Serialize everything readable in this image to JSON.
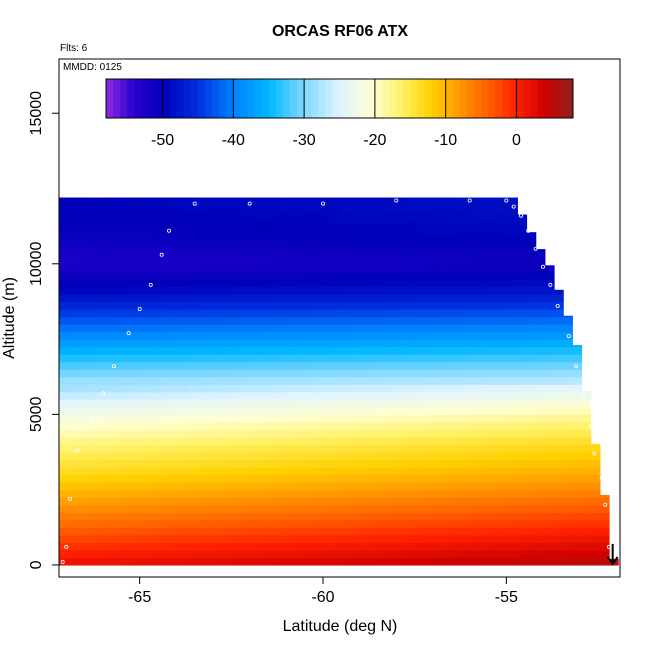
{
  "chart_data": {
    "type": "heatmap",
    "title": "ORCAS RF06 ATX",
    "xlabel": "Latitude (deg N)",
    "ylabel": "Altitude (m)",
    "xlim": [
      -67.2,
      -51.9
    ],
    "ylim": [
      -400,
      16800
    ],
    "x_ticks": [
      -65,
      -60,
      -55
    ],
    "y_ticks": [
      0,
      5000,
      10000,
      15000
    ],
    "annotations": {
      "flights": "Flts: 6",
      "date": "MMDD: 0125"
    },
    "colorbar": {
      "range": [
        -58,
        8
      ],
      "ticks": [
        -50,
        -40,
        -30,
        -20,
        -10,
        0
      ],
      "stops": [
        {
          "v": -58,
          "color": "#8a2be2"
        },
        {
          "v": -54,
          "color": "#2a00d0"
        },
        {
          "v": -50,
          "color": "#0000b8"
        },
        {
          "v": -45,
          "color": "#0030e0"
        },
        {
          "v": -40,
          "color": "#0080ff"
        },
        {
          "v": -35,
          "color": "#00b8ff"
        },
        {
          "v": -30,
          "color": "#80d8ff"
        },
        {
          "v": -25,
          "color": "#e0f4ff"
        },
        {
          "v": -20,
          "color": "#ffffd0"
        },
        {
          "v": -16,
          "color": "#fff060"
        },
        {
          "v": -12,
          "color": "#ffd000"
        },
        {
          "v": -8,
          "color": "#ff9800"
        },
        {
          "v": -4,
          "color": "#ff6000"
        },
        {
          "v": 0,
          "color": "#ff2000"
        },
        {
          "v": 4,
          "color": "#d00000"
        },
        {
          "v": 8,
          "color": "#902020"
        }
      ]
    },
    "temperature_profile": [
      {
        "alt": 0,
        "temp": 4
      },
      {
        "alt": 1000,
        "temp": -1
      },
      {
        "alt": 2000,
        "temp": -6
      },
      {
        "alt": 3000,
        "temp": -11
      },
      {
        "alt": 4000,
        "temp": -15
      },
      {
        "alt": 5000,
        "temp": -20
      },
      {
        "alt": 6000,
        "temp": -27
      },
      {
        "alt": 7000,
        "temp": -34
      },
      {
        "alt": 8000,
        "temp": -41
      },
      {
        "alt": 9000,
        "temp": -48
      },
      {
        "alt": 10000,
        "temp": -52
      },
      {
        "alt": 11000,
        "temp": -50
      },
      {
        "alt": 12000,
        "temp": -49
      }
    ],
    "coverage_top_by_lat": [
      {
        "lat": -67.2,
        "alt": 12200
      },
      {
        "lat": -54.8,
        "alt": 12200
      },
      {
        "lat": -54.6,
        "alt": 11700
      },
      {
        "lat": -54.4,
        "alt": 11200
      },
      {
        "lat": -54.2,
        "alt": 10800
      },
      {
        "lat": -54.0,
        "alt": 10300
      },
      {
        "lat": -53.7,
        "alt": 9700
      },
      {
        "lat": -53.5,
        "alt": 8800
      },
      {
        "lat": -53.3,
        "alt": 8200
      },
      {
        "lat": -53.1,
        "alt": 7400
      },
      {
        "lat": -52.9,
        "alt": 6600
      },
      {
        "lat": -52.8,
        "alt": 5500
      },
      {
        "lat": -52.6,
        "alt": 4300
      },
      {
        "lat": -52.5,
        "alt": 3200
      },
      {
        "lat": -52.3,
        "alt": 2200
      },
      {
        "lat": -52.2,
        "alt": 200
      }
    ],
    "flight_track": [
      {
        "lat": -67.1,
        "alt": 100
      },
      {
        "lat": -67.0,
        "alt": 600
      },
      {
        "lat": -66.9,
        "alt": 2200
      },
      {
        "lat": -66.7,
        "alt": 3800
      },
      {
        "lat": -66.3,
        "alt": 4900
      },
      {
        "lat": -66.0,
        "alt": 5700
      },
      {
        "lat": -65.7,
        "alt": 6600
      },
      {
        "lat": -65.3,
        "alt": 7700
      },
      {
        "lat": -65.0,
        "alt": 8500
      },
      {
        "lat": -64.7,
        "alt": 9300
      },
      {
        "lat": -64.4,
        "alt": 10300
      },
      {
        "lat": -64.2,
        "alt": 11100
      },
      {
        "lat": -63.5,
        "alt": 12000
      },
      {
        "lat": -62.0,
        "alt": 12000
      },
      {
        "lat": -60.0,
        "alt": 12000
      },
      {
        "lat": -58.0,
        "alt": 12100
      },
      {
        "lat": -56.0,
        "alt": 12100
      },
      {
        "lat": -55.0,
        "alt": 12100
      },
      {
        "lat": -54.8,
        "alt": 11900
      },
      {
        "lat": -54.6,
        "alt": 11600
      },
      {
        "lat": -54.4,
        "alt": 11100
      },
      {
        "lat": -54.2,
        "alt": 10500
      },
      {
        "lat": -54.0,
        "alt": 9900
      },
      {
        "lat": -53.8,
        "alt": 9300
      },
      {
        "lat": -53.6,
        "alt": 8600
      },
      {
        "lat": -53.3,
        "alt": 7600
      },
      {
        "lat": -53.1,
        "alt": 6600
      },
      {
        "lat": -52.9,
        "alt": 5700
      },
      {
        "lat": -52.7,
        "alt": 4600
      },
      {
        "lat": -52.6,
        "alt": 3700
      },
      {
        "lat": -52.4,
        "alt": 2900
      },
      {
        "lat": -52.3,
        "alt": 2000
      },
      {
        "lat": -52.2,
        "alt": 600
      }
    ],
    "end_marker": {
      "lat": -52.1,
      "alt_from": 700,
      "alt_to": 0
    }
  }
}
